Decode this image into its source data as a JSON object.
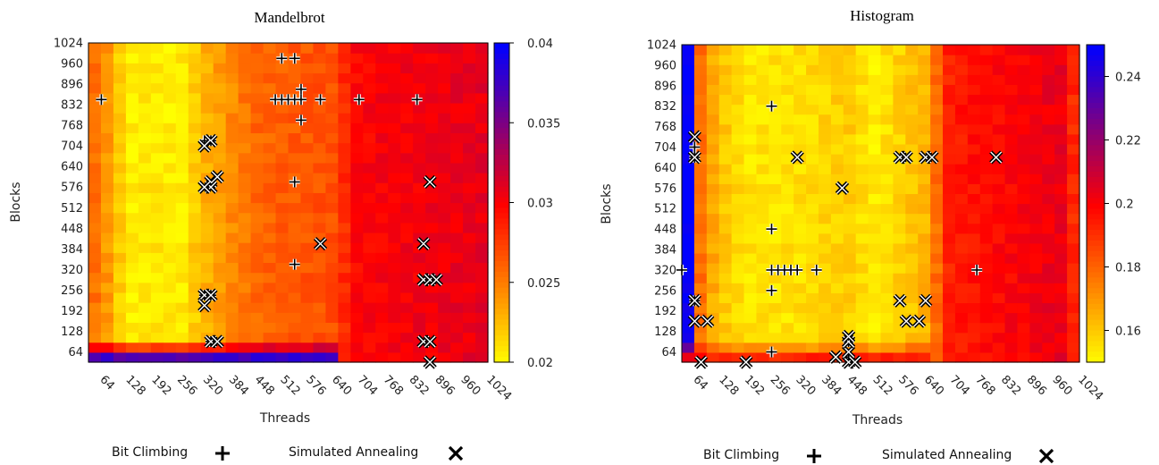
{
  "chart_data": [
    {
      "type": "heatmap",
      "title": "Mandelbrot",
      "xlabel": "Threads",
      "ylabel": "Blocks",
      "x_ticks": [
        "64",
        "128",
        "192",
        "256",
        "320",
        "384",
        "448",
        "512",
        "576",
        "640",
        "704",
        "768",
        "832",
        "896",
        "960",
        "1024"
      ],
      "y_ticks": [
        "1024",
        "960",
        "896",
        "832",
        "768",
        "704",
        "640",
        "576",
        "512",
        "448",
        "384",
        "320",
        "256",
        "192",
        "128",
        "64"
      ],
      "xlim": [
        32,
        1024
      ],
      "ylim": [
        32,
        1024
      ],
      "colorbar": {
        "ticks": [
          "0.04",
          "0.035",
          "0.03",
          "0.025",
          "0.02"
        ],
        "range": [
          0.02,
          0.04
        ]
      },
      "color_scale": [
        "#ffff00",
        "#ff0000",
        "#0000ff"
      ],
      "grid": false,
      "field_profile": {
        "thread_breakpoints": [
          32,
          64,
          96,
          128,
          192,
          256,
          320,
          384,
          448,
          640,
          700,
          1024
        ],
        "thread_values": [
          0.026,
          0.025,
          0.023,
          0.0205,
          0.021,
          0.0205,
          0.023,
          0.0245,
          0.026,
          0.027,
          0.03,
          0.031
        ],
        "low_block_cutoff": 100,
        "low_block_value": 0.04
      },
      "bit_climbing": [
        [
          64,
          848
        ],
        [
          512,
          976
        ],
        [
          544,
          976
        ],
        [
          496,
          848
        ],
        [
          512,
          848
        ],
        [
          528,
          848
        ],
        [
          544,
          848
        ],
        [
          560,
          848
        ],
        [
          560,
          880
        ],
        [
          560,
          784
        ],
        [
          544,
          592
        ],
        [
          544,
          336
        ],
        [
          608,
          848
        ],
        [
          704,
          848
        ],
        [
          848,
          848
        ],
        [
          320,
          720
        ],
        [
          336,
          720
        ],
        [
          320,
          240
        ],
        [
          336,
          240
        ],
        [
          336,
          96
        ]
      ],
      "simulated_annealing": [
        [
          336,
          720
        ],
        [
          320,
          704
        ],
        [
          336,
          592
        ],
        [
          352,
          608
        ],
        [
          336,
          576
        ],
        [
          320,
          576
        ],
        [
          608,
          400
        ],
        [
          880,
          592
        ],
        [
          864,
          400
        ],
        [
          864,
          288
        ],
        [
          880,
          288
        ],
        [
          896,
          288
        ],
        [
          320,
          240
        ],
        [
          320,
          208
        ],
        [
          336,
          240
        ],
        [
          336,
          96
        ],
        [
          352,
          96
        ],
        [
          864,
          96
        ],
        [
          880,
          96
        ],
        [
          880,
          32
        ]
      ],
      "legend": [
        {
          "label": "Bit Climbing",
          "marker": "plus"
        },
        {
          "label": "Simulated Annealing",
          "marker": "cross"
        }
      ]
    },
    {
      "type": "heatmap",
      "title": "Histogram",
      "xlabel": "Threads",
      "ylabel": "Blocks",
      "x_ticks": [
        "64",
        "128",
        "192",
        "256",
        "320",
        "384",
        "448",
        "512",
        "576",
        "640",
        "704",
        "768",
        "832",
        "896",
        "960",
        "1024"
      ],
      "y_ticks": [
        "1024",
        "960",
        "896",
        "832",
        "768",
        "704",
        "640",
        "576",
        "512",
        "448",
        "384",
        "320",
        "256",
        "192",
        "128",
        "64"
      ],
      "xlim": [
        32,
        1024
      ],
      "ylim": [
        32,
        1024
      ],
      "colorbar": {
        "ticks": [
          "0.24",
          "0.22",
          "0.2",
          "0.18",
          "0.16"
        ],
        "range": [
          0.15,
          0.25
        ]
      },
      "color_scale": [
        "#ffff00",
        "#ff0000",
        "#0000ff"
      ],
      "grid": false,
      "field_profile": {
        "thread_breakpoints": [
          32,
          48,
          64,
          96,
          128,
          192,
          320,
          448,
          512,
          640,
          700,
          1000,
          1024
        ],
        "thread_values": [
          0.25,
          0.25,
          0.185,
          0.17,
          0.162,
          0.155,
          0.156,
          0.16,
          0.153,
          0.165,
          0.195,
          0.205,
          0.17
        ],
        "low_block_cutoff": 100,
        "low_block_value": 0.2
      },
      "bit_climbing": [
        [
          32,
          320
        ],
        [
          64,
          704
        ],
        [
          64,
          672
        ],
        [
          64,
          224
        ],
        [
          256,
          832
        ],
        [
          256,
          448
        ],
        [
          256,
          320
        ],
        [
          272,
          320
        ],
        [
          288,
          320
        ],
        [
          304,
          320
        ],
        [
          320,
          320
        ],
        [
          368,
          320
        ],
        [
          256,
          256
        ],
        [
          256,
          64
        ],
        [
          768,
          320
        ],
        [
          448,
          96
        ],
        [
          448,
          48
        ]
      ],
      "simulated_annealing": [
        [
          64,
          736
        ],
        [
          64,
          672
        ],
        [
          64,
          224
        ],
        [
          64,
          160
        ],
        [
          96,
          160
        ],
        [
          80,
          32
        ],
        [
          192,
          32
        ],
        [
          320,
          672
        ],
        [
          432,
          576
        ],
        [
          432,
          576
        ],
        [
          576,
          672
        ],
        [
          592,
          672
        ],
        [
          640,
          672
        ],
        [
          656,
          672
        ],
        [
          816,
          672
        ],
        [
          576,
          224
        ],
        [
          640,
          224
        ],
        [
          592,
          160
        ],
        [
          624,
          160
        ],
        [
          416,
          48
        ],
        [
          448,
          32
        ],
        [
          464,
          32
        ],
        [
          448,
          64
        ],
        [
          448,
          96
        ],
        [
          448,
          112
        ]
      ],
      "legend": [
        {
          "label": "Bit Climbing",
          "marker": "plus"
        },
        {
          "label": "Simulated Annealing",
          "marker": "cross"
        }
      ]
    }
  ]
}
